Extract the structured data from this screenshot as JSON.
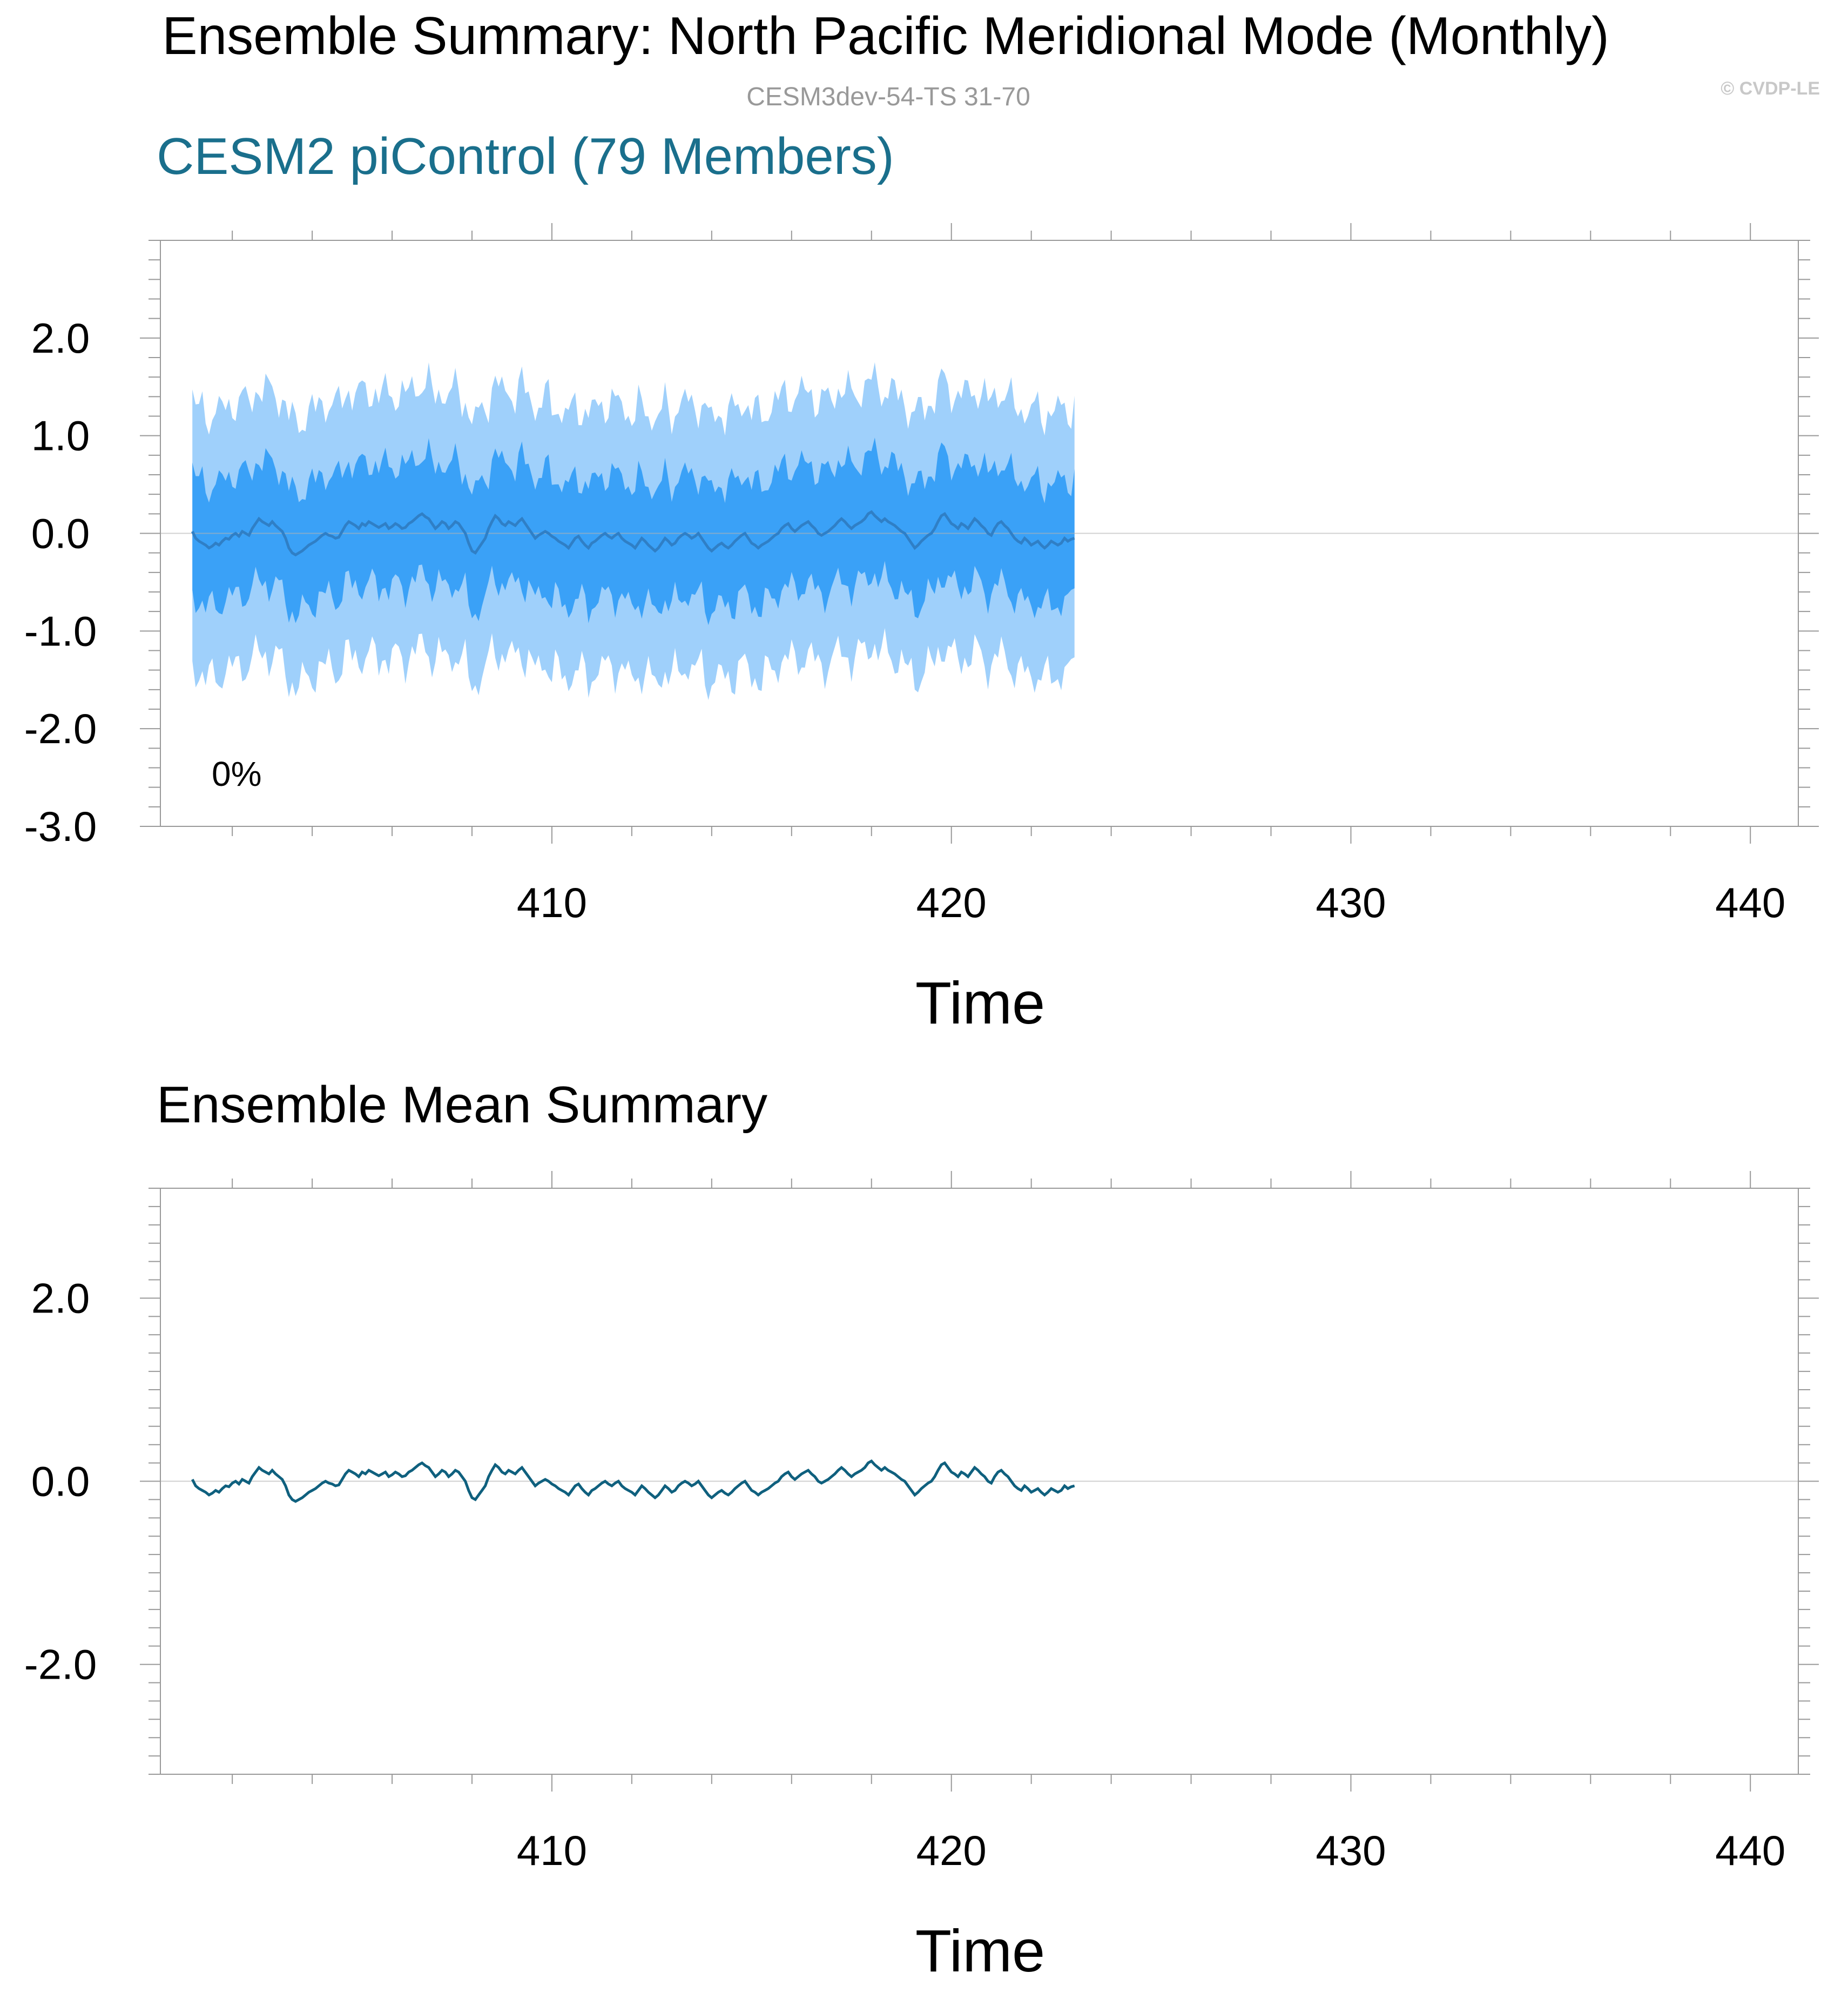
{
  "figure": {
    "title": "Ensemble Summary: North Pacific Meridional Mode (Monthly)",
    "subtitle": "CESM3dev-54-TS 31-70",
    "watermark": "© CVDP-LE"
  },
  "colors": {
    "title": "#000000",
    "subtitle": "#999999",
    "watermark": "#c8c8c8",
    "panel_title_top": "#1a6f8c",
    "band_outer": "#9fd0fb",
    "band_inner": "#3aa1f7",
    "mean_line_top": "#2f7fc6",
    "mean_line_bottom": "#0f607e",
    "zero_line": "#b3b3b3",
    "axis": "#999999"
  },
  "chart_data": [
    {
      "type": "area",
      "panel_title": "CESM2 piControl (79 Members)",
      "annotation": "0%",
      "xlabel": "Time",
      "ylabel": "",
      "xlim": [
        400.2,
        441.2
      ],
      "ylim": [
        -3.0,
        3.0
      ],
      "xticks": [
        410,
        420,
        430,
        440
      ],
      "yticks": [
        -3.0,
        -2.0,
        -1.0,
        0.0,
        1.0,
        2.0
      ],
      "ytick_labels": [
        "-3.0",
        "-2.0",
        "-1.0",
        "0.0",
        "1.0",
        "2.0"
      ],
      "x_start": 401.0,
      "x_step": 0.08333,
      "outer_band_half_width": 1.35,
      "inner_band_half_width": 0.62,
      "series": [
        {
          "role": "ensemble_mean",
          "values": [
            0.02,
            -0.05,
            -0.08,
            -0.1,
            -0.12,
            -0.15,
            -0.13,
            -0.1,
            -0.12,
            -0.08,
            -0.05,
            -0.06,
            -0.02,
            0.0,
            -0.03,
            0.02,
            0.0,
            -0.02,
            0.05,
            0.1,
            0.15,
            0.12,
            0.1,
            0.08,
            0.12,
            0.08,
            0.05,
            0.02,
            -0.05,
            -0.15,
            -0.2,
            -0.22,
            -0.2,
            -0.18,
            -0.15,
            -0.12,
            -0.1,
            -0.08,
            -0.05,
            -0.02,
            0.0,
            -0.02,
            -0.03,
            -0.05,
            -0.04,
            0.02,
            0.08,
            0.12,
            0.1,
            0.08,
            0.05,
            0.1,
            0.08,
            0.12,
            0.1,
            0.08,
            0.06,
            0.08,
            0.1,
            0.05,
            0.07,
            0.1,
            0.08,
            0.05,
            0.06,
            0.1,
            0.12,
            0.15,
            0.18,
            0.2,
            0.17,
            0.15,
            0.1,
            0.05,
            0.08,
            0.12,
            0.1,
            0.05,
            0.08,
            0.12,
            0.1,
            0.05,
            0.0,
            -0.1,
            -0.18,
            -0.2,
            -0.15,
            -0.1,
            -0.05,
            0.05,
            0.12,
            0.18,
            0.15,
            0.1,
            0.08,
            0.12,
            0.1,
            0.08,
            0.12,
            0.15,
            0.1,
            0.05,
            0.0,
            -0.05,
            -0.02,
            0.0,
            0.02,
            0.0,
            -0.03,
            -0.05,
            -0.08,
            -0.1,
            -0.12,
            -0.15,
            -0.1,
            -0.05,
            -0.03,
            -0.08,
            -0.12,
            -0.15,
            -0.1,
            -0.08,
            -0.05,
            -0.02,
            0.0,
            -0.03,
            -0.05,
            -0.02,
            0.0,
            -0.05,
            -0.08,
            -0.1,
            -0.12,
            -0.15,
            -0.1,
            -0.05,
            -0.08,
            -0.12,
            -0.15,
            -0.18,
            -0.15,
            -0.1,
            -0.05,
            -0.08,
            -0.12,
            -0.1,
            -0.05,
            -0.02,
            0.0,
            -0.02,
            -0.05,
            -0.03,
            0.0,
            -0.05,
            -0.1,
            -0.15,
            -0.18,
            -0.15,
            -0.12,
            -0.1,
            -0.13,
            -0.15,
            -0.12,
            -0.08,
            -0.05,
            -0.02,
            0.0,
            -0.05,
            -0.1,
            -0.12,
            -0.15,
            -0.12,
            -0.1,
            -0.08,
            -0.05,
            -0.02,
            0.0,
            0.05,
            0.08,
            0.1,
            0.05,
            0.02,
            0.05,
            0.08,
            0.1,
            0.12,
            0.08,
            0.05,
            0.0,
            -0.02,
            0.0,
            0.02,
            0.05,
            0.08,
            0.12,
            0.15,
            0.12,
            0.08,
            0.05,
            0.08,
            0.1,
            0.12,
            0.15,
            0.2,
            0.22,
            0.18,
            0.15,
            0.12,
            0.15,
            0.12,
            0.1,
            0.08,
            0.05,
            0.02,
            0.0,
            -0.05,
            -0.1,
            -0.15,
            -0.12,
            -0.08,
            -0.05,
            -0.02,
            0.0,
            0.05,
            0.12,
            0.18,
            0.2,
            0.15,
            0.1,
            0.08,
            0.05,
            0.1,
            0.08,
            0.05,
            0.1,
            0.15,
            0.12,
            0.08,
            0.05,
            0.0,
            -0.02,
            0.05,
            0.1,
            0.12,
            0.08,
            0.05,
            0.0,
            -0.05,
            -0.08,
            -0.1,
            -0.05,
            -0.08,
            -0.12,
            -0.1,
            -0.08,
            -0.12,
            -0.15,
            -0.12,
            -0.08,
            -0.1,
            -0.12,
            -0.1,
            -0.05,
            -0.08,
            -0.06,
            -0.05
          ]
        }
      ]
    },
    {
      "type": "line",
      "panel_title": "Ensemble Mean Summary",
      "xlabel": "Time",
      "ylabel": "",
      "xlim": [
        400.2,
        441.2
      ],
      "ylim": [
        -3.2,
        3.2
      ],
      "xticks": [
        410,
        420,
        430,
        440
      ],
      "yticks": [
        -2.0,
        0.0,
        2.0
      ],
      "ytick_labels": [
        "-2.0",
        "0.0",
        "2.0"
      ],
      "series_ref": "same ensemble mean as top panel"
    }
  ]
}
